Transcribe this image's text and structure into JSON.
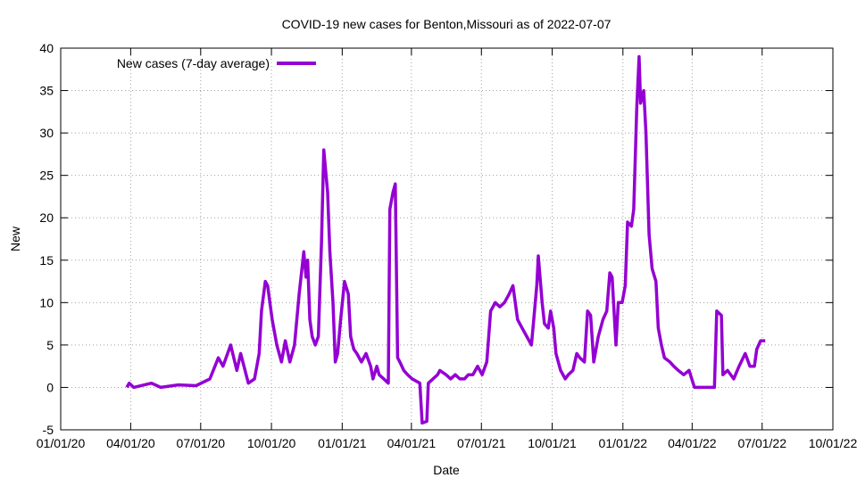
{
  "chart_data": {
    "type": "line",
    "title": "COVID-19 new cases for Benton,Missouri as of 2022-07-07",
    "xlabel": "Date",
    "ylabel": "New",
    "x_unit": "days since 2020-01-01",
    "xlim": [
      0,
      1004
    ],
    "ylim": [
      -5,
      40
    ],
    "yticks": [
      -5,
      0,
      5,
      10,
      15,
      20,
      25,
      30,
      35,
      40
    ],
    "xticks": [
      {
        "day": 0,
        "label": "01/01/20"
      },
      {
        "day": 91,
        "label": "04/01/20"
      },
      {
        "day": 182,
        "label": "07/01/20"
      },
      {
        "day": 274,
        "label": "10/01/20"
      },
      {
        "day": 366,
        "label": "01/01/21"
      },
      {
        "day": 456,
        "label": "04/01/21"
      },
      {
        "day": 547,
        "label": "07/01/21"
      },
      {
        "day": 639,
        "label": "10/01/21"
      },
      {
        "day": 731,
        "label": "01/01/22"
      },
      {
        "day": 821,
        "label": "04/01/22"
      },
      {
        "day": 912,
        "label": "07/01/22"
      },
      {
        "day": 1004,
        "label": "10/01/22"
      }
    ],
    "legend": {
      "position": "top-left",
      "label": "New cases (7-day average)"
    },
    "series": [
      {
        "name": "New cases (7-day average)",
        "color": "#9400d3",
        "points": [
          [
            86,
            0
          ],
          [
            89,
            0.5
          ],
          [
            95,
            0
          ],
          [
            118,
            0.5
          ],
          [
            130,
            0
          ],
          [
            153,
            0.3
          ],
          [
            176,
            0.2
          ],
          [
            194,
            1
          ],
          [
            205,
            3.5
          ],
          [
            211,
            2.5
          ],
          [
            221,
            5
          ],
          [
            229,
            2
          ],
          [
            234,
            4
          ],
          [
            244,
            0.5
          ],
          [
            252,
            1
          ],
          [
            258,
            4
          ],
          [
            261,
            9
          ],
          [
            266,
            12.5
          ],
          [
            269,
            12
          ],
          [
            275,
            8
          ],
          [
            281,
            5
          ],
          [
            287,
            3
          ],
          [
            292,
            5.5
          ],
          [
            298,
            3
          ],
          [
            304,
            5
          ],
          [
            310,
            11
          ],
          [
            316,
            16
          ],
          [
            319,
            13
          ],
          [
            321,
            15
          ],
          [
            324,
            8
          ],
          [
            327,
            6
          ],
          [
            331,
            5
          ],
          [
            335,
            6
          ],
          [
            339,
            17
          ],
          [
            342,
            28
          ],
          [
            347,
            23
          ],
          [
            350,
            16
          ],
          [
            354,
            10
          ],
          [
            357,
            3
          ],
          [
            360,
            4
          ],
          [
            364,
            8
          ],
          [
            369,
            12.5
          ],
          [
            374,
            11
          ],
          [
            377,
            6
          ],
          [
            381,
            4.5
          ],
          [
            385,
            4
          ],
          [
            391,
            3
          ],
          [
            397,
            4
          ],
          [
            403,
            2.5
          ],
          [
            406,
            1
          ],
          [
            411,
            2.5
          ],
          [
            414,
            1.5
          ],
          [
            420,
            1
          ],
          [
            426,
            0.5
          ],
          [
            428,
            21
          ],
          [
            432,
            23
          ],
          [
            435,
            24
          ],
          [
            438,
            3.5
          ],
          [
            441,
            3
          ],
          [
            446,
            2
          ],
          [
            451,
            1.5
          ],
          [
            457,
            1
          ],
          [
            467,
            0.5
          ],
          [
            470,
            -4.2
          ],
          [
            476,
            -4
          ],
          [
            478,
            0.5
          ],
          [
            484,
            1
          ],
          [
            490,
            1.5
          ],
          [
            493,
            2
          ],
          [
            501,
            1.5
          ],
          [
            507,
            1
          ],
          [
            513,
            1.5
          ],
          [
            519,
            1
          ],
          [
            525,
            1
          ],
          [
            530,
            1.5
          ],
          [
            536,
            1.5
          ],
          [
            542,
            2.5
          ],
          [
            548,
            1.5
          ],
          [
            554,
            3
          ],
          [
            559,
            9
          ],
          [
            565,
            10
          ],
          [
            571,
            9.5
          ],
          [
            577,
            10
          ],
          [
            583,
            11
          ],
          [
            588,
            12
          ],
          [
            594,
            8
          ],
          [
            600,
            7
          ],
          [
            606,
            6
          ],
          [
            612,
            5
          ],
          [
            615,
            8
          ],
          [
            619,
            12
          ],
          [
            621,
            15.5
          ],
          [
            626,
            10
          ],
          [
            629,
            7.5
          ],
          [
            634,
            7
          ],
          [
            637,
            9
          ],
          [
            641,
            7
          ],
          [
            644,
            4
          ],
          [
            650,
            2
          ],
          [
            656,
            1
          ],
          [
            660,
            1.5
          ],
          [
            666,
            2
          ],
          [
            671,
            4
          ],
          [
            675,
            3.5
          ],
          [
            681,
            3
          ],
          [
            685,
            9
          ],
          [
            689,
            8.5
          ],
          [
            693,
            3
          ],
          [
            699,
            6
          ],
          [
            705,
            8
          ],
          [
            710,
            9
          ],
          [
            714,
            13.5
          ],
          [
            717,
            13
          ],
          [
            722,
            5
          ],
          [
            725,
            10
          ],
          [
            730,
            10
          ],
          [
            734,
            12
          ],
          [
            737,
            19.5
          ],
          [
            742,
            19
          ],
          [
            745,
            21
          ],
          [
            749,
            33
          ],
          [
            752,
            39
          ],
          [
            754,
            33.5
          ],
          [
            758,
            35
          ],
          [
            761,
            30
          ],
          [
            765,
            18
          ],
          [
            769,
            14
          ],
          [
            774,
            12.5
          ],
          [
            777,
            7
          ],
          [
            781,
            5
          ],
          [
            785,
            3.5
          ],
          [
            792,
            3
          ],
          [
            797,
            2.5
          ],
          [
            803,
            2
          ],
          [
            810,
            1.5
          ],
          [
            817,
            2
          ],
          [
            824,
            0
          ],
          [
            850,
            0
          ],
          [
            853,
            9
          ],
          [
            859,
            8.5
          ],
          [
            861,
            1.5
          ],
          [
            867,
            2
          ],
          [
            875,
            1
          ],
          [
            882,
            2.5
          ],
          [
            890,
            4
          ],
          [
            896,
            2.5
          ],
          [
            902,
            2.5
          ],
          [
            905,
            4.5
          ],
          [
            910,
            5.5
          ],
          [
            916,
            5.5
          ]
        ]
      }
    ]
  }
}
